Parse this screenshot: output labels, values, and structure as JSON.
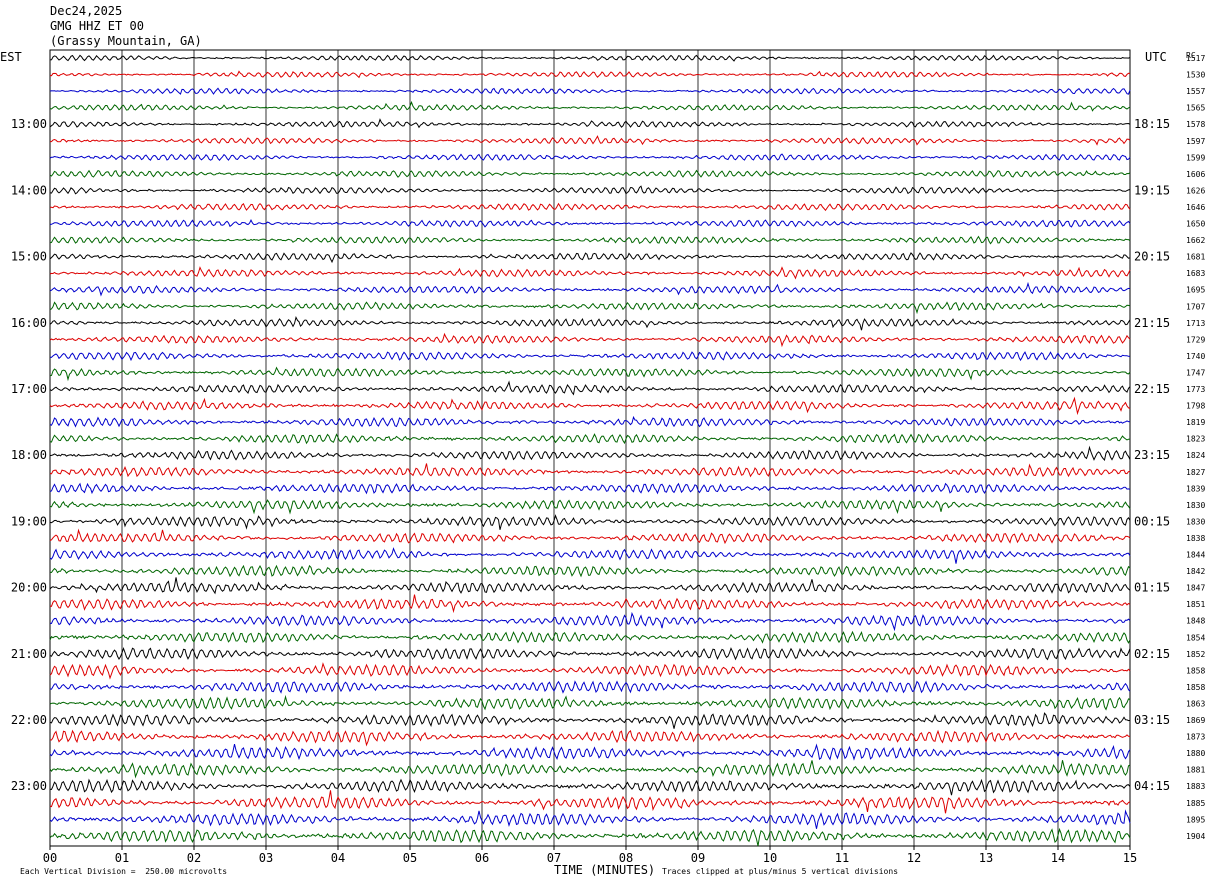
{
  "header": {
    "date": "Dec24,2025",
    "station": "GMG HHZ ET 00",
    "location": "(Grassy Mountain, GA)"
  },
  "chart_data": {
    "type": "line",
    "left_timezone": "EST",
    "right_timezone": "UTC",
    "rc_header": "RC",
    "xlabel": "TIME (MINUTES)",
    "x_tick_labels": [
      "00",
      "01",
      "02",
      "03",
      "04",
      "05",
      "06",
      "07",
      "08",
      "09",
      "10",
      "11",
      "12",
      "13",
      "14",
      "15"
    ],
    "xlim": [
      0,
      15
    ],
    "left_hour_labels": [
      "13:00",
      "14:00",
      "15:00",
      "16:00",
      "17:00",
      "18:00",
      "19:00",
      "20:00",
      "21:00",
      "22:00",
      "23:00"
    ],
    "right_hour_labels": [
      "18:15",
      "19:15",
      "20:15",
      "21:15",
      "22:15",
      "23:15",
      "00:15",
      "01:15",
      "02:15",
      "03:15",
      "04:15"
    ],
    "trace_colors": [
      "#000000",
      "#dd0000",
      "#0000cc",
      "#006600"
    ],
    "trace_rc_values": [
      1517,
      1530,
      1557,
      1565,
      1578,
      1597,
      1599,
      1606,
      1626,
      1646,
      1650,
      1662,
      1681,
      1683,
      1695,
      1707,
      1713,
      1729,
      1740,
      1747,
      1773,
      1798,
      1819,
      1823,
      1824,
      1827,
      1839,
      1830,
      1830,
      1838,
      1844,
      1842,
      1847,
      1851,
      1848,
      1854,
      1852,
      1858,
      1858,
      1863,
      1869,
      1873,
      1880,
      1881,
      1883,
      1885,
      1895,
      1904
    ],
    "footer_left": "Each Vertical Division =  250.00 microvolts",
    "footer_right": "Traces clipped at plus/minus 5 vertical divisions"
  }
}
